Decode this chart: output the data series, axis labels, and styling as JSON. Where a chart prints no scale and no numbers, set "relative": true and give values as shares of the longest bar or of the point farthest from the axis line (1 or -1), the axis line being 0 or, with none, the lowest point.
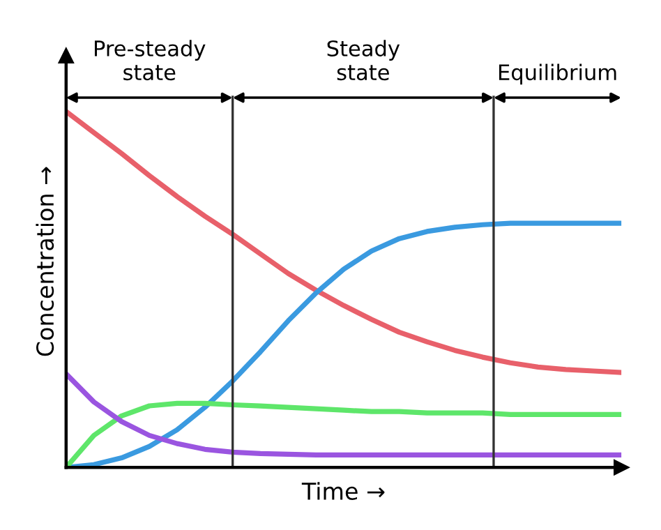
{
  "chart_data": {
    "type": "line",
    "relative": true,
    "xlabel": "Time →",
    "ylabel": "Concentration →",
    "marker": "none",
    "line_style": "solid",
    "categories": [
      null,
      null,
      null,
      null,
      null,
      null,
      null,
      null,
      null,
      null,
      null,
      null,
      null,
      null,
      null,
      null,
      null,
      null,
      null,
      null,
      null
    ],
    "series": [
      {
        "color": "#e8606a",
        "values": [
          1.0,
          0.941,
          0.882,
          0.82,
          0.761,
          0.706,
          0.655,
          0.6,
          0.545,
          0.498,
          0.455,
          0.416,
          0.38,
          0.353,
          0.329,
          0.31,
          0.294,
          0.282,
          0.275,
          0.271,
          0.267
        ]
      },
      {
        "color": "#3a9ae0",
        "values": [
          0,
          0.008,
          0.027,
          0.059,
          0.106,
          0.169,
          0.243,
          0.325,
          0.412,
          0.49,
          0.557,
          0.608,
          0.643,
          0.663,
          0.675,
          0.682,
          0.686,
          0.686,
          0.686,
          0.686,
          0.686
        ]
      },
      {
        "color": "#5ee66a",
        "values": [
          0,
          0.09,
          0.145,
          0.173,
          0.18,
          0.18,
          0.176,
          0.173,
          0.169,
          0.165,
          0.161,
          0.157,
          0.157,
          0.153,
          0.153,
          0.153,
          0.149,
          0.149,
          0.149,
          0.149,
          0.149
        ]
      },
      {
        "color": "#9a55e0",
        "values": [
          0.263,
          0.184,
          0.129,
          0.09,
          0.067,
          0.051,
          0.043,
          0.039,
          0.037,
          0.035,
          0.035,
          0.035,
          0.035,
          0.035,
          0.035,
          0.035,
          0.035,
          0.035,
          0.035,
          0.035,
          0.035
        ]
      }
    ],
    "annotations": [
      "Pre-steady\nstate",
      "Steady\nstate",
      "Equilibrium"
    ]
  }
}
